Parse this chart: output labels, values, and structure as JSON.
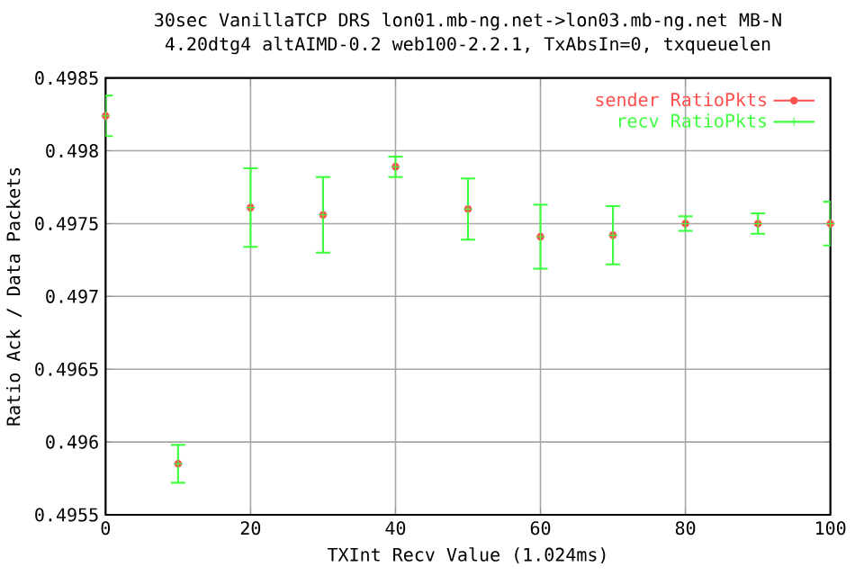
{
  "chart_data": {
    "type": "scatter",
    "title": "30sec VanillaTCP DRS lon01.mb-ng.net->lon03.mb-ng.net MB-N",
    "subtitle": "4.20dtg4 altAIMD-0.2 web100-2.2.1, TxAbsIn=0, txqueuelen",
    "xlabel": "TXInt Recv Value (1.024ms)",
    "ylabel": "Ratio Ack / Data Packets",
    "x": [
      0,
      10,
      20,
      30,
      40,
      50,
      60,
      70,
      80,
      90,
      100
    ],
    "series": [
      {
        "name": "sender RatioPkts",
        "color": "#ff5050",
        "marker": "circle",
        "values": [
          0.49824,
          0.49585,
          0.49761,
          0.49756,
          0.49789,
          0.4976,
          0.49741,
          0.49742,
          0.4975,
          0.4975,
          0.4975
        ]
      },
      {
        "name": "recv RatioPkts",
        "color": "#40ff40",
        "marker": "cross",
        "values": [
          0.49824,
          0.49585,
          0.49761,
          0.49756,
          0.49789,
          0.4976,
          0.49741,
          0.49742,
          0.4975,
          0.4975,
          0.4975
        ],
        "errors": [
          0.00014,
          0.00013,
          0.00027,
          0.00026,
          7e-05,
          0.00021,
          0.00022,
          0.0002,
          5e-05,
          7e-05,
          0.00015
        ]
      }
    ],
    "xlim": [
      0,
      100
    ],
    "xticks": [
      0,
      20,
      40,
      60,
      80,
      100
    ],
    "ylim": [
      0.4955,
      0.4985
    ],
    "yticks": [
      0.4955,
      0.496,
      0.4965,
      0.497,
      0.4975,
      0.498,
      0.4985
    ],
    "grid": true,
    "legend": "top right"
  }
}
